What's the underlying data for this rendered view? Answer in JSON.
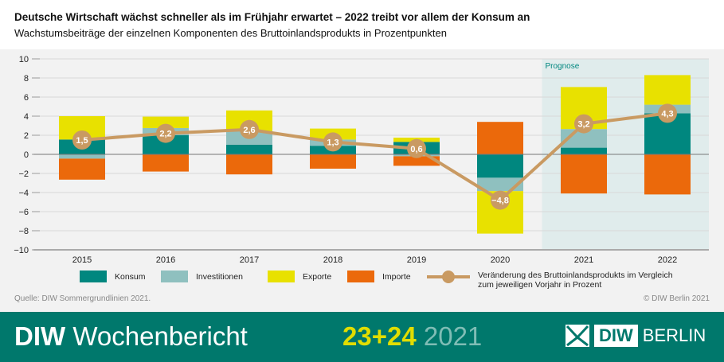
{
  "header": {
    "title": "Deutsche Wirtschaft wächst schneller als im Frühjahr erwartet – 2022 treibt vor allem der Konsum an",
    "subtitle": "Wachstumsbeiträge der einzelnen Komponenten des Bruttoinlandsprodukts in Prozentpunkten"
  },
  "chart_data": {
    "type": "bar",
    "stacked": true,
    "categories": [
      "2015",
      "2016",
      "2017",
      "2018",
      "2019",
      "2020",
      "2021",
      "2022"
    ],
    "ylim": [
      -10,
      10
    ],
    "yticks": [
      "10",
      "8",
      "6",
      "4",
      "2",
      "0",
      "−2",
      "−4",
      "−6",
      "−8",
      "−10"
    ],
    "ytick_values": [
      10,
      8,
      6,
      4,
      2,
      0,
      -2,
      -4,
      -6,
      -8,
      -10
    ],
    "grid": true,
    "annotation": "Prognose",
    "forecast_categories": [
      "2021",
      "2022"
    ],
    "series": [
      {
        "name": "Konsum",
        "color": "#00877f",
        "values": [
          1.55,
          2.0,
          1.0,
          0.9,
          1.3,
          -2.45,
          0.7,
          4.3
        ]
      },
      {
        "name": "Investitionen",
        "color": "#8fc0bf",
        "values": [
          -0.45,
          0.75,
          1.45,
          0.65,
          -0.2,
          -1.4,
          1.95,
          0.9
        ]
      },
      {
        "name": "Exporte",
        "color": "#e8e100",
        "values": [
          2.45,
          1.2,
          2.15,
          1.15,
          0.45,
          -4.45,
          4.4,
          3.1
        ]
      },
      {
        "name": "Importe",
        "color": "#eb690b",
        "values": [
          -2.2,
          -1.8,
          -2.1,
          -1.5,
          -1.0,
          3.4,
          -4.1,
          -4.2
        ]
      }
    ],
    "line": {
      "name": "Veränderung des Bruttoinlandsprodukts im Vergleich zum jeweiligen Vorjahr in Prozent",
      "name_line1": "Veränderung des Bruttoinlandsprodukts im Vergleich",
      "name_line2": "zum jeweiligen Vorjahr in Prozent",
      "color": "#c99a62",
      "values": [
        1.5,
        2.2,
        2.6,
        1.3,
        0.6,
        -4.8,
        3.2,
        4.3
      ],
      "labels": [
        "1,5",
        "2,2",
        "2,6",
        "1,3",
        "0,6",
        "−4,8",
        "3,2",
        "4,3"
      ]
    }
  },
  "footer": {
    "source": "Quelle: DIW Sommergrundlinien 2021.",
    "copyright": "© DIW Berlin 2021",
    "brand_bold": "DIW",
    "brand_name": "Wochenbericht",
    "issue": "23+24",
    "year": "2021",
    "logo_diw": "DIW",
    "logo_berlin": "BERLIN"
  },
  "colors": {
    "footer_bg": "#00786c",
    "forecast_bg": "#e0ecec",
    "issue": "#e1dd00"
  }
}
